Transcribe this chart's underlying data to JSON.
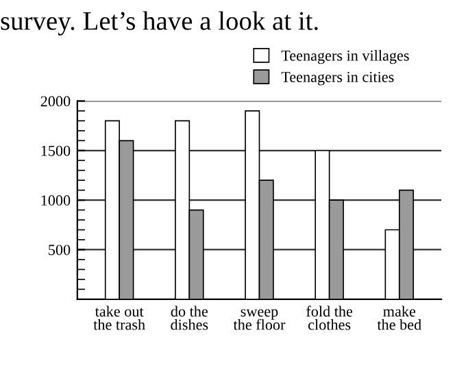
{
  "chart_data": {
    "type": "bar",
    "title": "survey. Let’s have a look at it.",
    "categories": [
      "take out\nthe trash",
      "do the\ndishes",
      "sweep\nthe floor",
      "fold the\nclothes",
      "make\nthe bed"
    ],
    "series": [
      {
        "name": "Teenagers in villages",
        "color": "#ffffff",
        "values": [
          1800,
          1800,
          1900,
          1500,
          700
        ]
      },
      {
        "name": "Teenagers in cities",
        "color": "#9a9a9a",
        "values": [
          1600,
          900,
          1200,
          1000,
          1100
        ]
      }
    ],
    "ylim": [
      0,
      2000
    ],
    "yticks": [
      500,
      1000,
      1500,
      2000
    ],
    "grid": "y",
    "legend": "top right"
  }
}
